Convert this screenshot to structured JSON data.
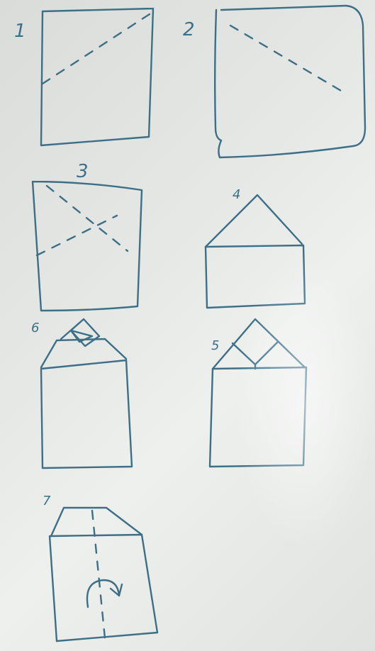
{
  "steps": [
    {
      "label": "1"
    },
    {
      "label": "2"
    },
    {
      "label": "3"
    },
    {
      "label": "4"
    },
    {
      "label": "5"
    },
    {
      "label": "6"
    },
    {
      "label": "7"
    }
  ],
  "ink_color": "#3d6f86",
  "background_color": "#e4e6e4"
}
